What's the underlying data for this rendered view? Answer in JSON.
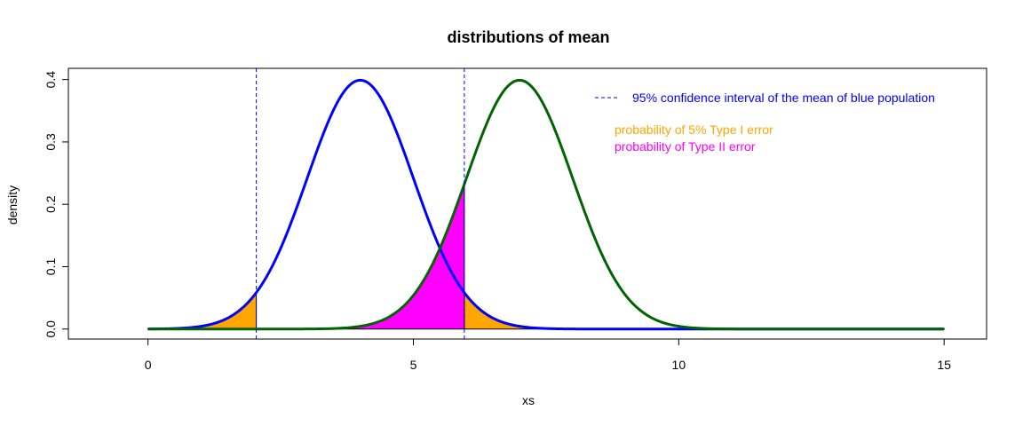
{
  "chart_data": {
    "type": "line",
    "title": "distributions of mean",
    "xlabel": "xs",
    "ylabel": "density",
    "xlim": [
      -1.5,
      15.8
    ],
    "ylim": [
      -0.016,
      0.418
    ],
    "xticks": [
      0,
      5,
      10,
      15
    ],
    "xtick_labels": [
      "0",
      "5",
      "10",
      "15"
    ],
    "yticks": [
      0.0,
      0.1,
      0.2,
      0.3,
      0.4
    ],
    "ytick_labels": [
      "0.0",
      "0.1",
      "0.2",
      "0.3",
      "0.4"
    ],
    "x_range": [
      0,
      15
    ],
    "series": [
      {
        "color": "#0000ff",
        "mean": 4,
        "sd": 1,
        "peak_density": 0.4
      },
      {
        "color": "#006400",
        "mean": 7,
        "sd": 1,
        "peak_density": 0.4
      }
    ],
    "vlines": [
      {
        "x": 2.04,
        "style": "dashed",
        "color": "#0000ff"
      },
      {
        "x": 5.96,
        "style": "dashed",
        "color": "#0000ff"
      }
    ],
    "shaded_regions": [
      {
        "from": 0,
        "to": 2.04,
        "under_series": 0,
        "color": "#ffa500",
        "meaning": "type1"
      },
      {
        "from": 5.96,
        "to": 15,
        "under_series": 0,
        "color": "#ffa500",
        "meaning": "type1"
      },
      {
        "from": 0,
        "to": 5.96,
        "under_series": 1,
        "color": "#ff00ff",
        "meaning": "type2"
      }
    ],
    "legend": {
      "position": "top-right",
      "entries": [
        {
          "text": "95% confidence interval of the mean of blue population",
          "color": "#0000ff",
          "symbol": "dashed-line"
        },
        {
          "text": "probability of 5% Type I error",
          "color": "#ffa500",
          "symbol": "none"
        },
        {
          "text": "probability of Type II error",
          "color": "#ff00ff",
          "symbol": "none"
        }
      ]
    },
    "grid": false
  }
}
